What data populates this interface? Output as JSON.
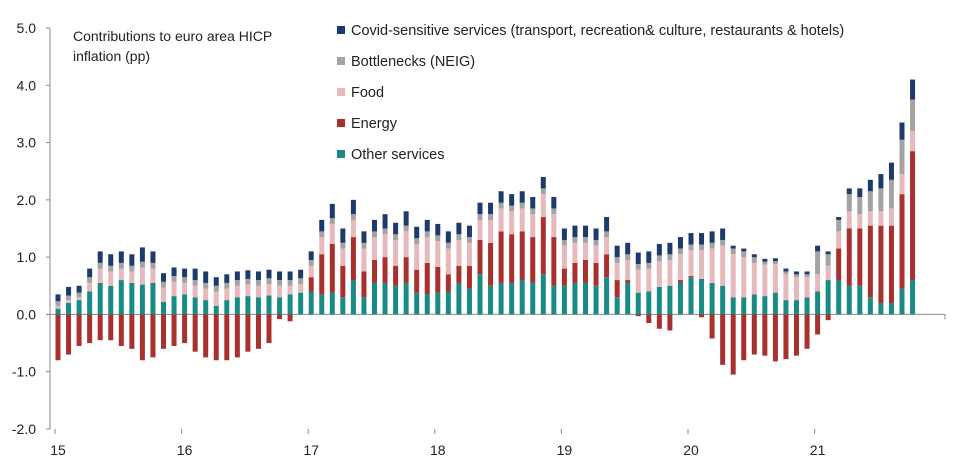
{
  "chart_data": {
    "type": "bar",
    "stacked": true,
    "title": "Contributions to euro area HICP inflation (pp)",
    "title_lines": [
      "Contributions to euro area HICP",
      "inflation (pp)"
    ],
    "xlabel": "",
    "ylabel": "",
    "ylim": [
      -2.0,
      5.0
    ],
    "yticks": [
      "5.0",
      "4.0",
      "3.0",
      "2.0",
      "1.0",
      "0.0",
      "-1.0",
      "-2.0"
    ],
    "ytick_values": [
      5,
      4,
      3,
      2,
      1,
      0,
      -1,
      -2
    ],
    "x_labels": [
      {
        "label": "15",
        "index": 0
      },
      {
        "label": "16",
        "index": 12
      },
      {
        "label": "17",
        "index": 24
      },
      {
        "label": "18",
        "index": 36
      },
      {
        "label": "19",
        "index": 48
      },
      {
        "label": "20",
        "index": 60
      },
      {
        "label": "21",
        "index": 72
      }
    ],
    "categories": [
      "2015-01",
      "2015-02",
      "2015-03",
      "2015-04",
      "2015-05",
      "2015-06",
      "2015-07",
      "2015-08",
      "2015-09",
      "2015-10",
      "2015-11",
      "2015-12",
      "2016-01",
      "2016-02",
      "2016-03",
      "2016-04",
      "2016-05",
      "2016-06",
      "2016-07",
      "2016-08",
      "2016-09",
      "2016-10",
      "2016-11",
      "2016-12",
      "2017-01",
      "2017-02",
      "2017-03",
      "2017-04",
      "2017-05",
      "2017-06",
      "2017-07",
      "2017-08",
      "2017-09",
      "2017-10",
      "2017-11",
      "2017-12",
      "2018-01",
      "2018-02",
      "2018-03",
      "2018-04",
      "2018-05",
      "2018-06",
      "2018-07",
      "2018-08",
      "2018-09",
      "2018-10",
      "2018-11",
      "2018-12",
      "2019-01",
      "2019-02",
      "2019-03",
      "2019-04",
      "2019-05",
      "2019-06",
      "2019-07",
      "2019-08",
      "2019-09",
      "2019-10",
      "2019-11",
      "2019-12",
      "2020-01",
      "2020-02",
      "2020-03",
      "2020-04",
      "2020-05",
      "2020-06",
      "2020-07",
      "2020-08",
      "2020-09",
      "2020-10",
      "2020-11",
      "2020-12",
      "2021-01",
      "2021-02",
      "2021-03",
      "2021-04",
      "2021-05",
      "2021-06",
      "2021-07",
      "2021-08",
      "2021-09",
      "2021-10"
    ],
    "series": [
      {
        "name": "Other services",
        "color": "#1a8a84",
        "values": [
          0.1,
          0.2,
          0.25,
          0.4,
          0.55,
          0.5,
          0.6,
          0.55,
          0.52,
          0.55,
          0.22,
          0.32,
          0.35,
          0.3,
          0.25,
          0.15,
          0.25,
          0.3,
          0.32,
          0.3,
          0.33,
          0.3,
          0.35,
          0.38,
          0.4,
          0.35,
          0.38,
          0.3,
          0.6,
          0.3,
          0.55,
          0.55,
          0.5,
          0.55,
          0.38,
          0.35,
          0.38,
          0.4,
          0.55,
          0.45,
          0.7,
          0.5,
          0.55,
          0.55,
          0.6,
          0.55,
          0.7,
          0.5,
          0.5,
          0.55,
          0.55,
          0.5,
          0.65,
          0.3,
          0.55,
          0.38,
          0.4,
          0.48,
          0.5,
          0.55,
          0.65,
          0.62,
          0.55,
          0.5,
          0.3,
          0.3,
          0.35,
          0.32,
          0.38,
          0.25,
          0.25,
          0.3,
          0.4,
          0.6,
          0.6,
          0.5,
          0.5,
          0.3,
          0.2,
          0.2,
          0.45,
          0.6
        ]
      },
      {
        "name": "Energy",
        "color": "#a8302d",
        "values": [
          -0.8,
          -0.7,
          -0.55,
          -0.5,
          -0.45,
          -0.45,
          -0.55,
          -0.6,
          -0.8,
          -0.75,
          -0.6,
          -0.55,
          -0.5,
          -0.65,
          -0.75,
          -0.8,
          -0.8,
          -0.75,
          -0.65,
          -0.6,
          -0.5,
          -0.08,
          -0.12,
          0.0,
          0.25,
          0.7,
          0.85,
          0.55,
          0.75,
          0.45,
          0.4,
          0.45,
          0.35,
          0.45,
          0.4,
          0.55,
          0.45,
          0.3,
          0.3,
          0.4,
          0.6,
          0.75,
          0.9,
          0.85,
          0.85,
          0.8,
          1.0,
          0.85,
          0.3,
          0.35,
          0.4,
          0.4,
          0.4,
          0.3,
          0.05,
          -0.03,
          -0.15,
          -0.25,
          -0.28,
          0.05,
          0.02,
          -0.05,
          -0.42,
          -0.88,
          -1.05,
          -0.8,
          -0.7,
          -0.72,
          -0.82,
          -0.78,
          -0.72,
          -0.6,
          -0.35,
          -0.1,
          0.55,
          1.0,
          1.0,
          1.25,
          1.35,
          1.35,
          1.65,
          2.25
        ]
      },
      {
        "name": "Food",
        "color": "#e8b9bc",
        "values": [
          0.05,
          0.05,
          0.05,
          0.15,
          0.25,
          0.25,
          0.2,
          0.2,
          0.3,
          0.25,
          0.25,
          0.25,
          0.2,
          0.2,
          0.2,
          0.25,
          0.2,
          0.2,
          0.2,
          0.2,
          0.2,
          0.2,
          0.15,
          0.15,
          0.2,
          0.3,
          0.35,
          0.3,
          0.3,
          0.4,
          0.4,
          0.4,
          0.45,
          0.45,
          0.45,
          0.45,
          0.45,
          0.45,
          0.45,
          0.4,
          0.35,
          0.4,
          0.4,
          0.4,
          0.4,
          0.4,
          0.4,
          0.4,
          0.4,
          0.35,
          0.3,
          0.3,
          0.3,
          0.3,
          0.35,
          0.4,
          0.4,
          0.45,
          0.45,
          0.45,
          0.45,
          0.5,
          0.6,
          0.7,
          0.75,
          0.7,
          0.55,
          0.55,
          0.5,
          0.45,
          0.4,
          0.35,
          0.3,
          0.25,
          0.3,
          0.3,
          0.25,
          0.25,
          0.25,
          0.3,
          0.35,
          0.35
        ]
      },
      {
        "name": "Bottlenecks (NEIG)",
        "color": "#a3a3a3",
        "values": [
          0.08,
          0.08,
          0.08,
          0.1,
          0.1,
          0.1,
          0.1,
          0.1,
          0.1,
          0.1,
          0.1,
          0.1,
          0.1,
          0.1,
          0.1,
          0.1,
          0.1,
          0.1,
          0.1,
          0.1,
          0.1,
          0.1,
          0.1,
          0.1,
          0.1,
          0.1,
          0.1,
          0.1,
          0.1,
          0.1,
          0.1,
          0.1,
          0.1,
          0.1,
          0.1,
          0.1,
          0.1,
          0.1,
          0.1,
          0.1,
          0.1,
          0.1,
          0.1,
          0.1,
          0.1,
          0.1,
          0.1,
          0.1,
          0.1,
          0.1,
          0.1,
          0.1,
          0.1,
          0.1,
          0.1,
          0.1,
          0.1,
          0.1,
          0.1,
          0.1,
          0.1,
          0.1,
          0.1,
          0.1,
          0.1,
          0.1,
          0.1,
          0.05,
          0.05,
          0.05,
          0.05,
          0.05,
          0.4,
          0.2,
          0.2,
          0.3,
          0.3,
          0.35,
          0.4,
          0.5,
          0.6,
          0.55
        ]
      },
      {
        "name": "Covid-sensitive services (transport, recreation& culture, restaurants & hotels)",
        "color": "#1c3a6b",
        "values": [
          0.12,
          0.15,
          0.12,
          0.15,
          0.2,
          0.2,
          0.2,
          0.2,
          0.25,
          0.2,
          0.15,
          0.15,
          0.15,
          0.2,
          0.2,
          0.15,
          0.15,
          0.15,
          0.15,
          0.15,
          0.15,
          0.15,
          0.15,
          0.15,
          0.15,
          0.2,
          0.25,
          0.25,
          0.25,
          0.2,
          0.2,
          0.25,
          0.2,
          0.25,
          0.2,
          0.2,
          0.2,
          0.2,
          0.2,
          0.2,
          0.2,
          0.2,
          0.2,
          0.2,
          0.2,
          0.2,
          0.2,
          0.2,
          0.2,
          0.2,
          0.2,
          0.2,
          0.25,
          0.2,
          0.2,
          0.2,
          0.2,
          0.2,
          0.2,
          0.2,
          0.2,
          0.2,
          0.2,
          0.2,
          0.05,
          0.05,
          0.05,
          0.05,
          0.05,
          0.05,
          0.05,
          0.05,
          0.1,
          0.05,
          0.05,
          0.1,
          0.15,
          0.2,
          0.25,
          0.3,
          0.3,
          0.35
        ]
      }
    ],
    "legend": {
      "placement": "top-center",
      "order": [
        "Covid-sensitive services (transport, recreation& culture, restaurants & hotels)",
        "Bottlenecks (NEIG)",
        "Food",
        "Energy",
        "Other services"
      ]
    },
    "grid": false
  }
}
